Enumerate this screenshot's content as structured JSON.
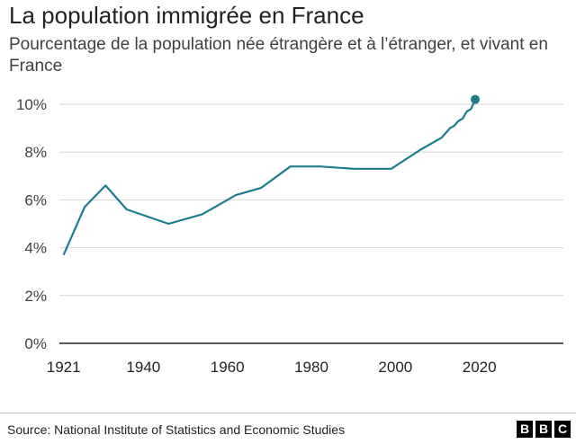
{
  "title": "La population immigrée en France",
  "subtitle": "Pourcentage de la population née étrangère et à l’étranger, et vivant en France",
  "source": "Source: National Institute of Statistics and Economic Studies",
  "logo": [
    "B",
    "B",
    "C"
  ],
  "colors": {
    "line": "#1d7b8e",
    "grid": "#d6d6d6",
    "text": "#222222"
  },
  "chart_data": {
    "type": "line",
    "title": "La population immigrée en France",
    "xlabel": "",
    "ylabel": "",
    "xlim": [
      1920,
      2040
    ],
    "ylim": [
      0,
      10
    ],
    "x_ticks": [
      "1921",
      "1940",
      "1960",
      "1980",
      "2000",
      "2020"
    ],
    "y_ticks": [
      "0%",
      "2%",
      "4%",
      "6%",
      "8%",
      "10%"
    ],
    "grid": true,
    "series": [
      {
        "x": [
          1921,
          1926,
          1931,
          1936,
          1946,
          1954,
          1962,
          1968,
          1975,
          1982,
          1990,
          1999,
          2006,
          2011,
          2012,
          2013,
          2014,
          2015,
          2016,
          2017,
          2018,
          2019
        ],
        "y": [
          3.7,
          5.7,
          6.6,
          5.6,
          5.0,
          5.4,
          6.2,
          6.5,
          7.4,
          7.4,
          7.3,
          7.3,
          8.1,
          8.6,
          8.8,
          9.0,
          9.1,
          9.3,
          9.4,
          9.7,
          9.8,
          10.2
        ]
      }
    ]
  }
}
